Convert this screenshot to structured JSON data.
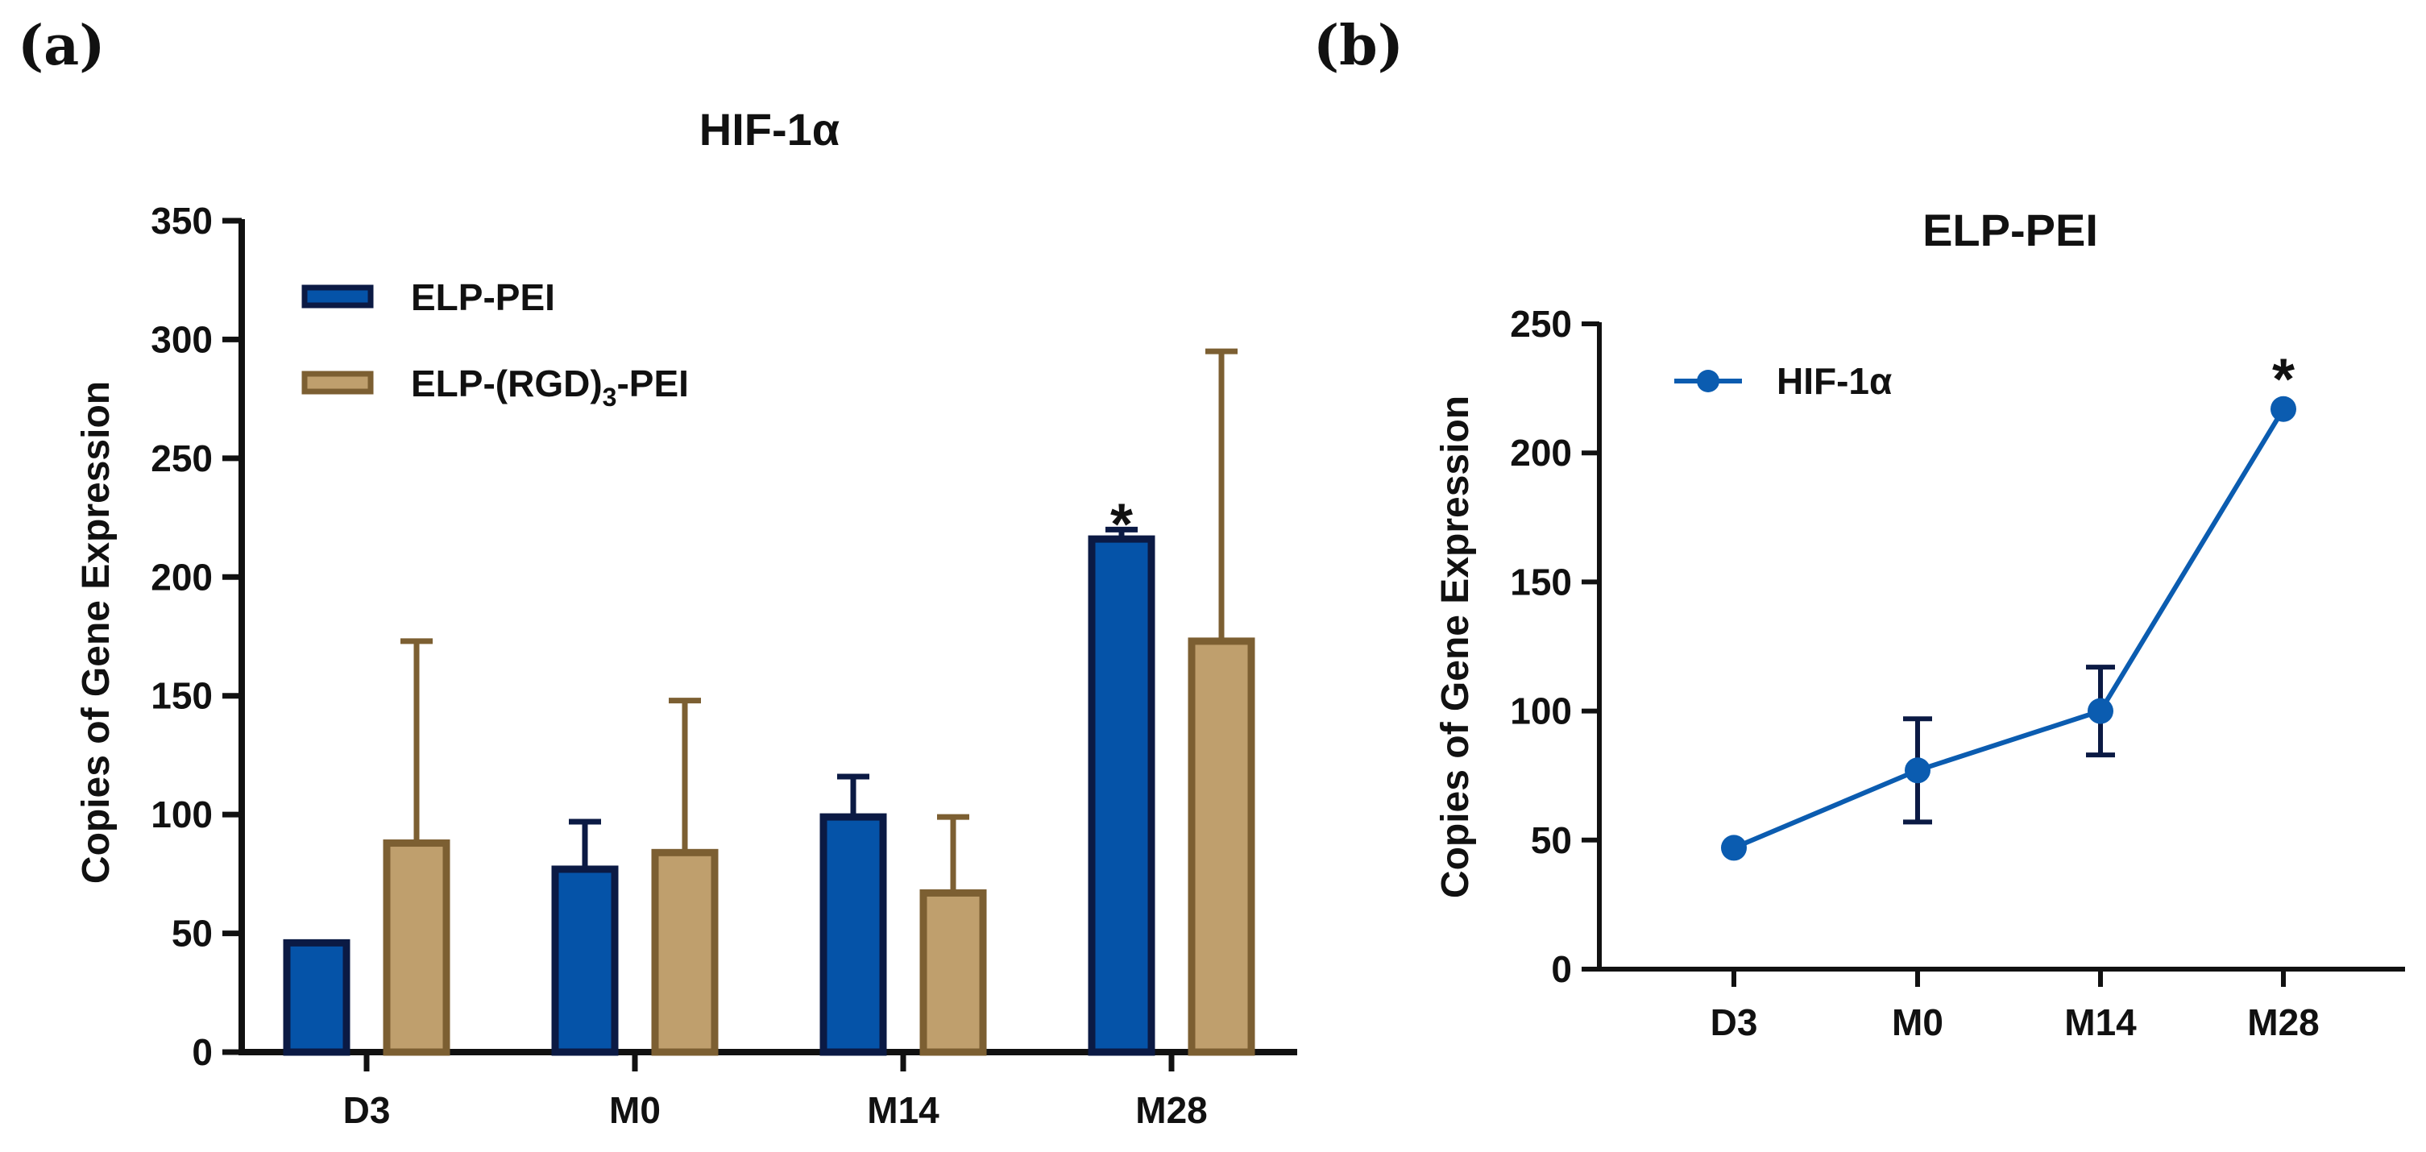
{
  "chart_data": [
    {
      "panel": "(a)",
      "type": "bar",
      "title": "HIF-1α",
      "ylabel": "Copies of Gene Expression",
      "xlabel": "",
      "ylim": [
        0,
        350
      ],
      "yticks": [
        0,
        50,
        100,
        150,
        200,
        250,
        300,
        350
      ],
      "categories": [
        "D3",
        "M0",
        "M14",
        "M28"
      ],
      "series": [
        {
          "name": "ELP-PEI",
          "legend_main": "ELP-PEI",
          "legend_sub": "",
          "legend_tail": "",
          "fill": "#0553a8",
          "stroke": "#0b1a44",
          "values": [
            46,
            77,
            99,
            216
          ],
          "err": [
            0,
            20,
            17,
            4
          ]
        },
        {
          "name": "ELP-(RGD)3-PEI",
          "legend_main": "ELP-(RGD)",
          "legend_sub": "3",
          "legend_tail": "-PEI",
          "fill": "#bf9f6d",
          "stroke": "#7c5f32",
          "values": [
            88,
            84,
            67,
            173
          ],
          "err": [
            85,
            64,
            32,
            122
          ]
        }
      ],
      "annotations": [
        {
          "text": "*",
          "category": "M28",
          "series": 0
        }
      ]
    },
    {
      "panel": "(b)",
      "type": "line",
      "title": "ELP-PEI",
      "ylabel": "Copies of Gene Expression",
      "xlabel": "",
      "ylim": [
        0,
        250
      ],
      "yticks": [
        0,
        50,
        100,
        150,
        200,
        250
      ],
      "categories": [
        "D3",
        "M0",
        "M14",
        "M28"
      ],
      "series": [
        {
          "name": "HIF-1α",
          "color": "#0b5cb0",
          "errcolor": "#0b1a44",
          "values": [
            47,
            77,
            100,
            217
          ],
          "err": [
            0,
            20,
            17,
            0
          ]
        }
      ],
      "annotations": [
        {
          "text": "*",
          "category": "M28",
          "series": 0
        }
      ]
    }
  ]
}
